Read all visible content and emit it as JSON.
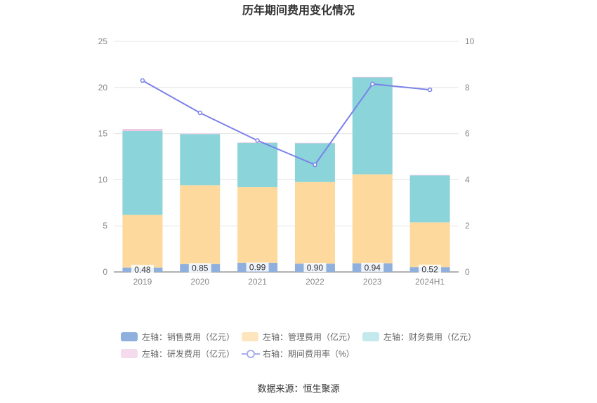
{
  "chart_data": {
    "type": "bar",
    "title": "历年期间费用变化情况",
    "categories": [
      "2019",
      "2020",
      "2021",
      "2022",
      "2023",
      "2024H1"
    ],
    "y_left": {
      "min": 0,
      "max": 25,
      "ticks": [
        "0",
        "5",
        "10",
        "15",
        "20",
        "25"
      ]
    },
    "y_right": {
      "min": 0,
      "max": 10,
      "ticks": [
        "0",
        "2",
        "4",
        "6",
        "8",
        "10"
      ]
    },
    "series": [
      {
        "name": "左轴：销售费用（亿元）",
        "type": "bar",
        "axis": "left",
        "color": "#8fafdc",
        "values": [
          0.48,
          0.85,
          0.99,
          0.9,
          0.94,
          0.52
        ],
        "labels": [
          "0.48",
          "0.85",
          "0.99",
          "0.90",
          "0.94",
          "0.52"
        ]
      },
      {
        "name": "左轴：管理费用（亿元）",
        "type": "bar",
        "axis": "left",
        "color": "#fdd99d",
        "values": [
          5.7,
          8.55,
          8.2,
          8.85,
          9.65,
          4.85
        ]
      },
      {
        "name": "左轴：财务费用（亿元）",
        "type": "bar",
        "axis": "left",
        "color": "#8ad4da",
        "values": [
          9.1,
          5.55,
          4.8,
          4.2,
          10.5,
          5.1
        ]
      },
      {
        "name": "左轴：研发费用（亿元）",
        "type": "bar",
        "axis": "left",
        "color": "#f0c6e4",
        "values": [
          0.22,
          0.05,
          0.05,
          0.05,
          0.05,
          0.05
        ]
      },
      {
        "name": "右轴：期间费用率（%）",
        "type": "line",
        "axis": "right",
        "color": "#7b82e8",
        "values": [
          8.3,
          6.9,
          5.7,
          4.65,
          8.15,
          7.9
        ]
      }
    ],
    "legend_position": "bottom",
    "grid": true
  },
  "source": "数据来源：恒生聚源"
}
